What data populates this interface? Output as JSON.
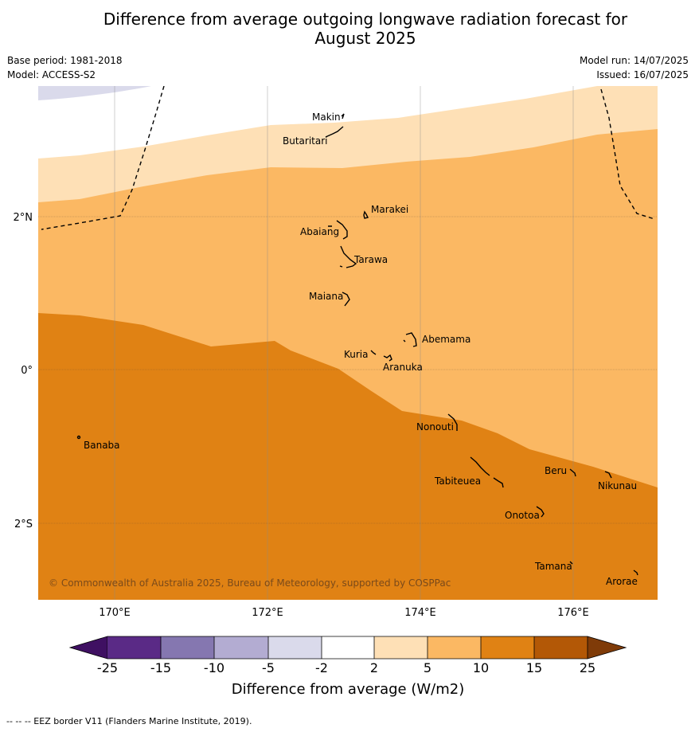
{
  "title_line1": "Difference from average outgoing longwave radiation forecast for",
  "title_line2": "August 2025",
  "base_period": "Base period: 1981-2018",
  "model": "Model: ACCESS-S2",
  "model_run": "Model run: 14/07/2025",
  "issued": "Issued: 16/07/2025",
  "copyright": "© Commonwealth of Australia 2025, Bureau of Meteorology, supported by COSPPac",
  "footer_note": "--  --  -- EEZ border V11 (Flanders Marine Institute, 2019).",
  "map": {
    "lat_labels": [
      "2°N",
      "0°",
      "2°S"
    ],
    "lon_labels": [
      "170°E",
      "172°E",
      "174°E",
      "176°E"
    ],
    "islands": [
      "Makin",
      "Butaritari",
      "Marakei",
      "Abaiang",
      "Tarawa",
      "Maiana",
      "Abemama",
      "Kuria",
      "Aranuka",
      "Nonouti",
      "Banaba",
      "Beru",
      "Nikunau",
      "Tabiteuea",
      "Onotoa",
      "Tamana",
      "Arorae"
    ]
  },
  "colorbar": {
    "label": "Difference from average (W/m2)",
    "ticks": [
      "-25",
      "-15",
      "-10",
      "-5",
      "-2",
      "2",
      "5",
      "10",
      "15",
      "25"
    ],
    "colors": [
      "#3f1062",
      "#5a2a86",
      "#8577b0",
      "#b3acd2",
      "#dadaeb",
      "#ffffff",
      "#fee0b6",
      "#fbb863",
      "#e08214",
      "#b35806",
      "#7f3b08"
    ]
  }
}
